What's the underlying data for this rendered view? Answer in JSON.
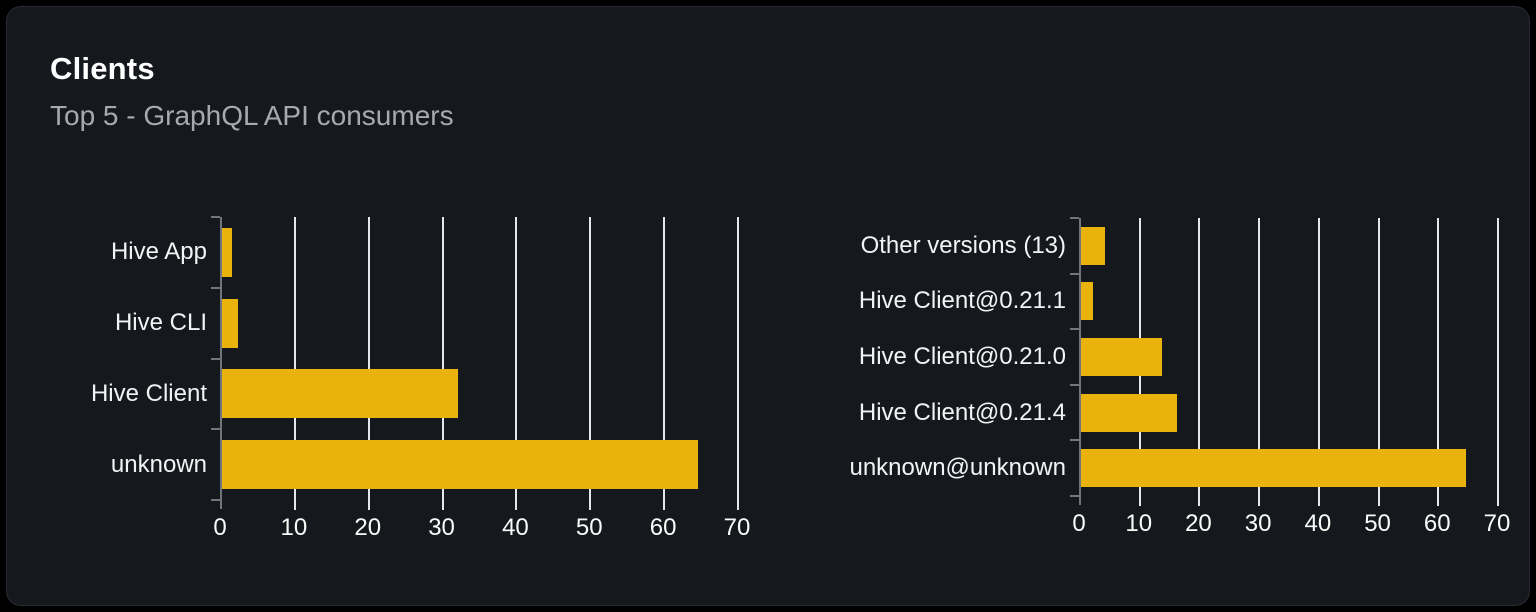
{
  "card": {
    "title": "Clients",
    "subtitle": "Top 5 - GraphQL API consumers"
  },
  "colors": {
    "page_bg": "#000000",
    "card_bg": "#15181d",
    "card_border": "#282b32",
    "bar": "#e9b20d",
    "grid_line": "#e3e6ef",
    "axis_line": "#71757e",
    "title_text": "#ffffff",
    "subtitle_text": "#a6a9b0",
    "label_text": "#f2f3f5"
  },
  "chart_data": [
    {
      "type": "bar",
      "orientation": "horizontal",
      "title": "",
      "categories_top_to_bottom": [
        "Hive App",
        "Hive CLI",
        "Hive Client",
        "unknown"
      ],
      "values": [
        1.3,
        2.2,
        32,
        64.5
      ],
      "xticks": [
        0,
        10,
        20,
        30,
        40,
        50,
        60,
        70
      ],
      "xlim": [
        0,
        70
      ],
      "xlabel": "",
      "ylabel": "",
      "grid": "vertical-gridlines-on",
      "legend": "none",
      "bar_color": "#e9b20d"
    },
    {
      "type": "bar",
      "orientation": "horizontal",
      "title": "",
      "categories_top_to_bottom": [
        "Other versions (13)",
        "Hive Client@0.21.1",
        "Hive Client@0.21.0",
        "Hive Client@0.21.4",
        "unknown@unknown"
      ],
      "values": [
        4,
        2,
        13.5,
        16,
        64.5
      ],
      "xticks": [
        0,
        10,
        20,
        30,
        40,
        50,
        60,
        70
      ],
      "xlim": [
        0,
        70
      ],
      "xlabel": "",
      "ylabel": "",
      "grid": "vertical-gridlines-on",
      "legend": "none",
      "bar_color": "#e9b20d"
    }
  ]
}
